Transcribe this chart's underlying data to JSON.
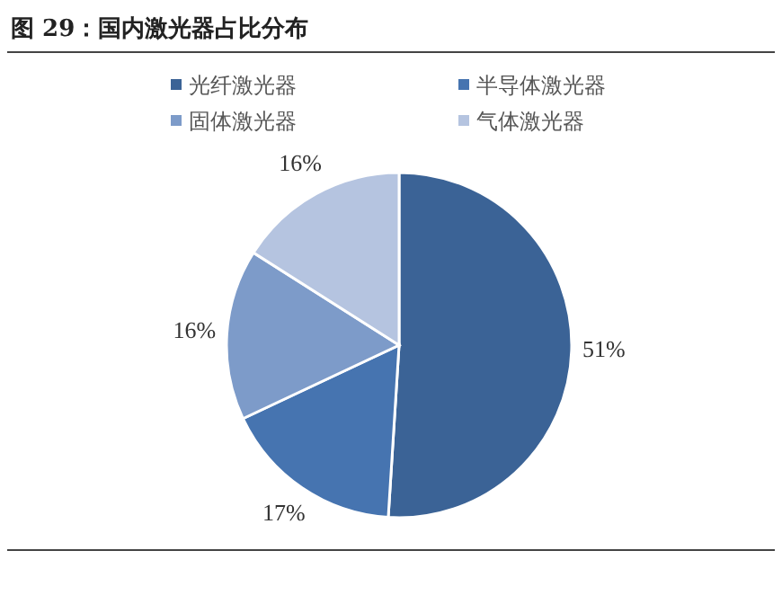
{
  "chart_data": {
    "type": "pie",
    "title": "图 29：国内激光器占比分布",
    "categories": [
      "光纤激光器",
      "半导体激光器",
      "固体激光器",
      "气体激光器"
    ],
    "values": [
      51,
      17,
      16,
      16
    ],
    "colors": [
      "#3b6396",
      "#4674b0",
      "#7d9bc9",
      "#b5c4e0"
    ],
    "value_labels": [
      "51%",
      "17%",
      "16%",
      "16%"
    ],
    "legend": "top"
  }
}
